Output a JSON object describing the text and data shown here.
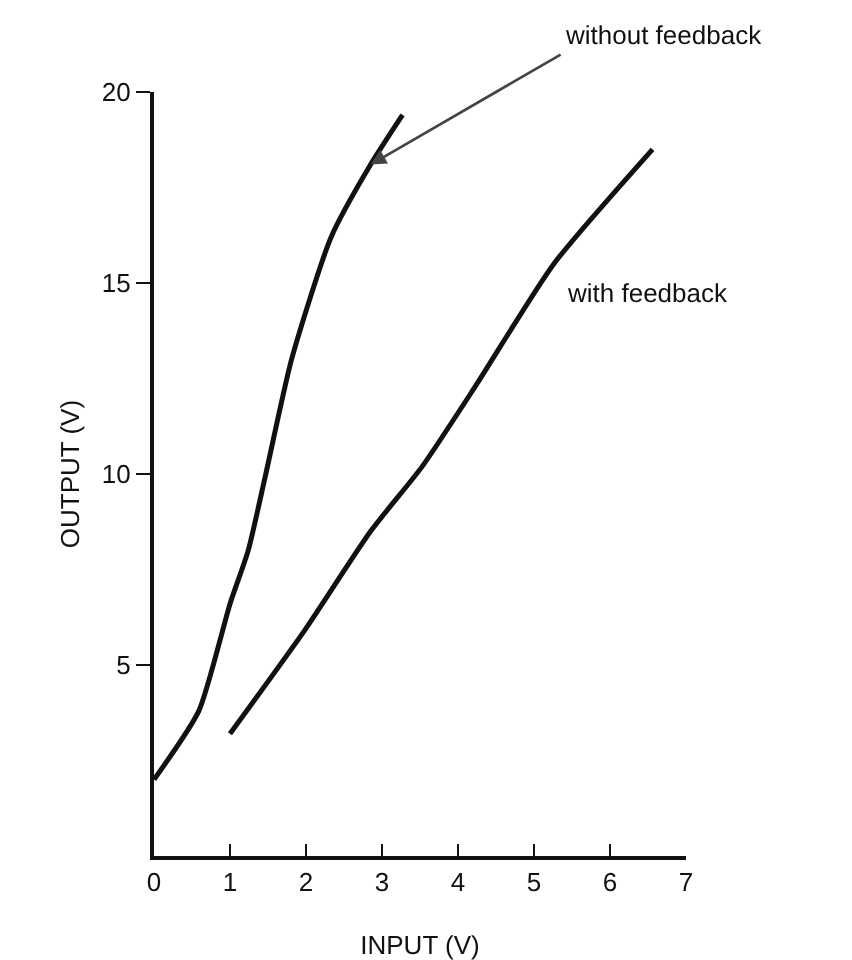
{
  "chart_data": {
    "type": "line",
    "xlabel": "INPUT (V)",
    "ylabel": "OUTPUT (V)",
    "xlim": [
      0,
      7
    ],
    "xticks": [
      0,
      1,
      2,
      3,
      4,
      5,
      6,
      7
    ],
    "ylim": [
      0,
      20
    ],
    "yticks": [
      5,
      10,
      15,
      20
    ],
    "grid": false,
    "legend": false,
    "marker": "none",
    "line_style": "solid",
    "series": [
      {
        "name": "without feedback",
        "color": "#111111",
        "x": [
          0,
          0.59,
          1.0,
          1.24,
          1.46,
          1.81,
          2.33,
          2.85,
          3.27
        ],
        "values": [
          2.0,
          3.8,
          6.6,
          8.0,
          9.9,
          13.0,
          16.2,
          18.1,
          19.4
        ]
      },
      {
        "name": "with feedback",
        "color": "#111111",
        "x": [
          1.0,
          1.98,
          2.85,
          3.53,
          4.23,
          5.26,
          6.56
        ],
        "values": [
          3.2,
          5.9,
          8.5,
          10.2,
          12.3,
          15.5,
          18.5
        ]
      }
    ]
  }
}
